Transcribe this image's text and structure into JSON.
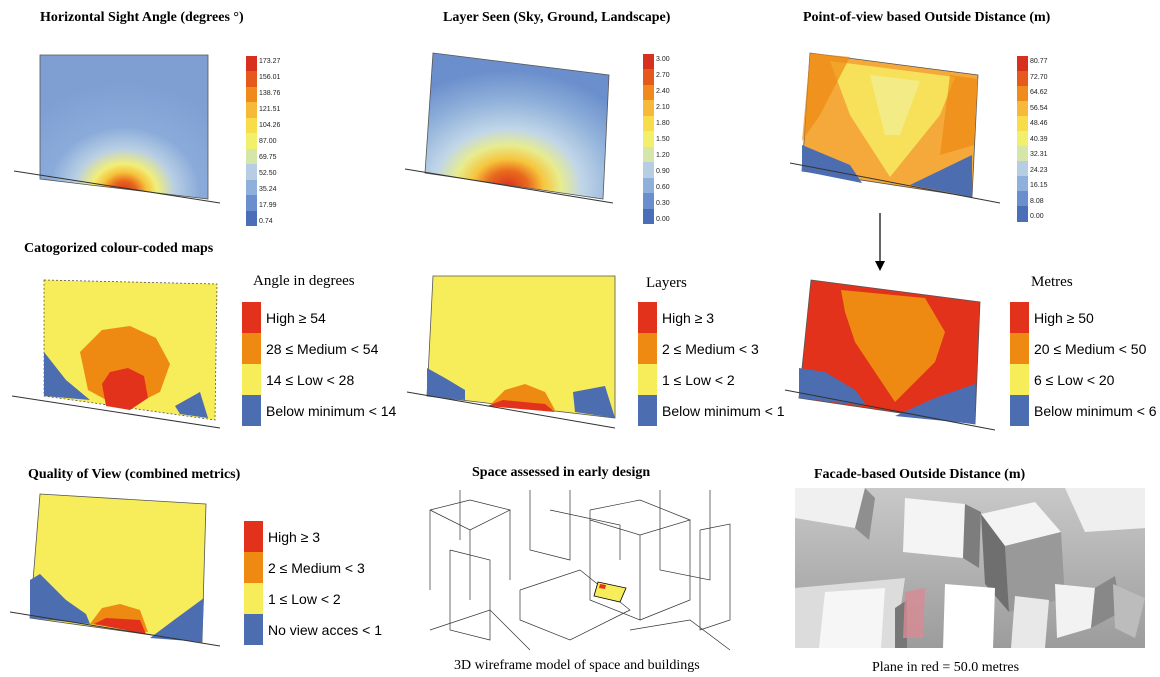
{
  "titles": {
    "p1": "Horizontal Sight Angle (degrees °)",
    "p2": "Layer Seen (Sky, Ground, Landscape)",
    "p3": "Point-of-view based Outside Distance (m)",
    "row2": "Catogorized colour-coded maps",
    "p7": "Quality of View (combined metrics)",
    "p8": "Space assessed in early design",
    "p9": "Facade-based Outside Distance (m)"
  },
  "colorbars": {
    "angle": [
      "173.27",
      "156.01",
      "138.76",
      "121.51",
      "104.26",
      "87.00",
      "69.75",
      "52.50",
      "35.24",
      "17.99",
      "0.74"
    ],
    "layers": [
      "3.00",
      "2.70",
      "2.40",
      "2.10",
      "1.80",
      "1.50",
      "1.20",
      "0.90",
      "0.60",
      "0.30",
      "0.00"
    ],
    "distance": [
      "80.77",
      "72.70",
      "64.62",
      "56.54",
      "48.46",
      "40.39",
      "32.31",
      "24.23",
      "16.15",
      "8.08",
      "0.00"
    ],
    "colors": [
      "#d7301f",
      "#e55a1c",
      "#f08a1c",
      "#f6b93a",
      "#f8dc4a",
      "#f2ef6a",
      "#d6e6a8",
      "#b6cde3",
      "#8fb0da",
      "#6b8fcc",
      "#4a6fb8"
    ]
  },
  "legends": {
    "angle": {
      "title": "Angle in degrees",
      "items": [
        "High ≥ 54",
        "28 ≤ Medium < 54",
        "14 ≤ Low < 28",
        "Below minimum < 14"
      ]
    },
    "layers": {
      "title": "Layers",
      "items": [
        "High ≥ 3",
        "2 ≤ Medium < 3",
        "1 ≤ Low < 2",
        "Below minimum < 1"
      ]
    },
    "metres": {
      "title": "Metres",
      "items": [
        "High ≥ 50",
        "20 ≤ Medium < 50",
        "6 ≤ Low < 20",
        "Below minimum < 6"
      ]
    },
    "quality": {
      "items": [
        "High ≥ 3",
        "2 ≤ Medium < 3",
        "1 ≤ Low < 2",
        "No view acces < 1"
      ]
    },
    "colors": [
      "#e3321b",
      "#ee8a12",
      "#f7ec5a",
      "#4d6db1"
    ]
  },
  "captions": {
    "wireframe": "3D wireframe model of space and buildings",
    "facade": "Plane in red = 50.0 metres"
  }
}
